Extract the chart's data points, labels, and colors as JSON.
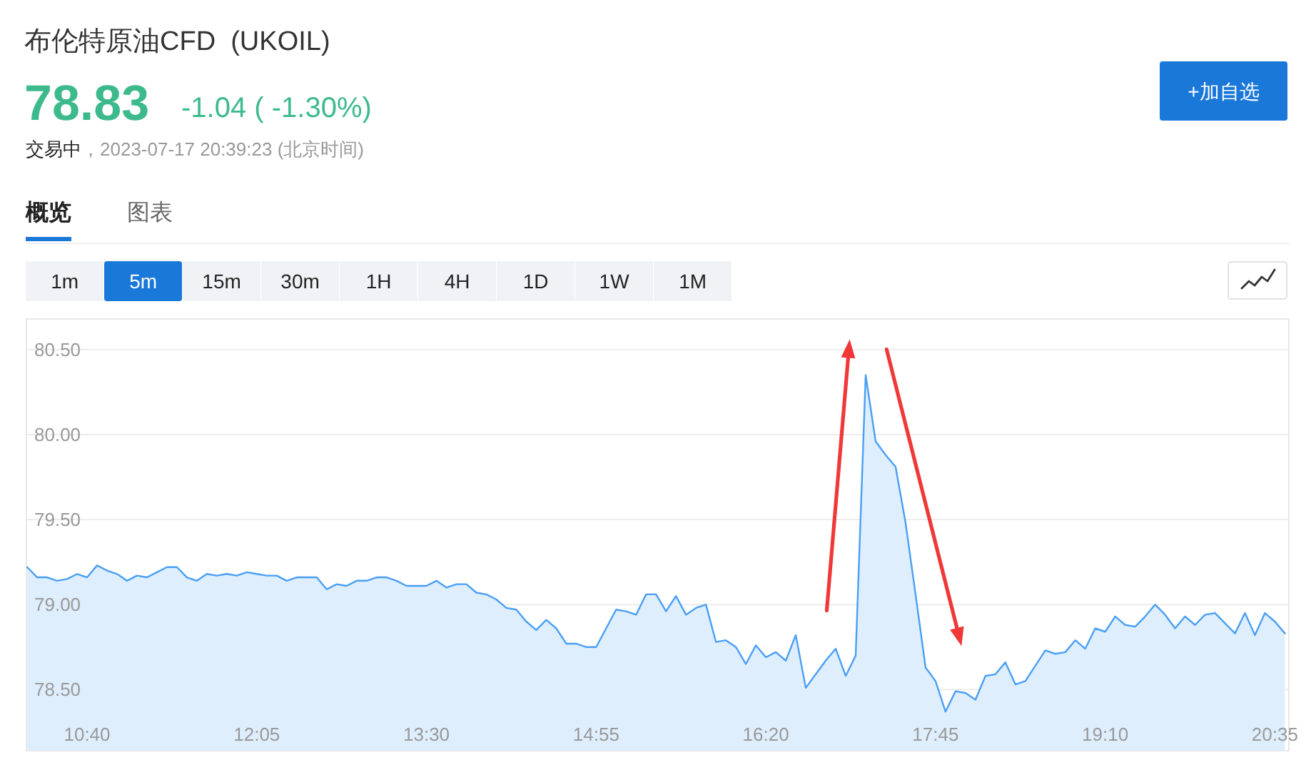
{
  "chart_data": {
    "type": "area",
    "title": "布伦特原油CFD  (UKOIL)",
    "annotations": [
      "78.83",
      "-1.04 ( -1.30%)",
      "交易中",
      "，2023-07-17 20:39:23 (北京时间)",
      "+加自选",
      "概览",
      "图表",
      "1m",
      "5m",
      "15m",
      "30m",
      "1H",
      "4H",
      "1D",
      "1W",
      "1M"
    ],
    "x": [
      10.1667,
      10.25,
      10.3333,
      10.4167,
      10.5,
      10.5833,
      10.6667,
      10.75,
      10.8333,
      10.9167,
      11,
      11.0833,
      11.1667,
      11.25,
      11.3333,
      11.4167,
      11.5,
      11.5833,
      11.6667,
      11.75,
      11.8333,
      11.9167,
      12,
      12.0833,
      12.1667,
      12.25,
      12.3333,
      12.4167,
      12.5,
      12.5833,
      12.6667,
      12.75,
      12.8333,
      12.9167,
      13,
      13.0833,
      13.1667,
      13.25,
      13.3333,
      13.4167,
      13.5,
      13.5833,
      13.6667,
      13.75,
      13.8333,
      13.9167,
      14,
      14.0833,
      14.1667,
      14.25,
      14.3333,
      14.4167,
      14.5,
      14.5833,
      14.6667,
      14.75,
      14.8333,
      14.9167,
      15,
      15.0833,
      15.1667,
      15.25,
      15.3333,
      15.4167,
      15.5,
      15.5833,
      15.6667,
      15.75,
      15.8333,
      15.9167,
      16,
      16.0833,
      16.1667,
      16.25,
      16.3333,
      16.4167,
      16.5,
      16.5833,
      16.6667,
      16.75,
      16.8333,
      16.9167,
      17,
      17.0833,
      17.1667,
      17.25,
      17.3333,
      17.4167,
      17.5,
      17.5833,
      17.6667,
      17.75,
      17.8333,
      17.9167,
      18,
      18.0833,
      18.1667,
      18.25,
      18.3333,
      18.4167,
      18.5,
      18.5833,
      18.6667,
      18.75,
      18.8333,
      18.9167,
      19,
      19.0833,
      19.1667,
      19.25,
      19.3333,
      19.4167,
      19.5,
      19.5833,
      19.6667,
      19.75,
      19.8333,
      19.9167,
      20,
      20.0833,
      20.1667,
      20.25,
      20.3333,
      20.4167,
      20.5,
      20.5833,
      20.6667
    ],
    "values": [
      79.22,
      79.16,
      79.16,
      79.14,
      79.15,
      79.18,
      79.16,
      79.23,
      79.2,
      79.18,
      79.14,
      79.17,
      79.16,
      79.19,
      79.22,
      79.22,
      79.16,
      79.14,
      79.18,
      79.17,
      79.18,
      79.17,
      79.19,
      79.18,
      79.17,
      79.17,
      79.14,
      79.16,
      79.16,
      79.16,
      79.09,
      79.12,
      79.11,
      79.14,
      79.14,
      79.16,
      79.16,
      79.14,
      79.11,
      79.11,
      79.11,
      79.14,
      79.1,
      79.12,
      79.12,
      79.07,
      79.06,
      79.03,
      78.98,
      78.97,
      78.9,
      78.85,
      78.91,
      78.86,
      78.77,
      78.77,
      78.75,
      78.75,
      78.86,
      78.97,
      78.96,
      78.94,
      79.06,
      79.06,
      78.96,
      79.05,
      78.94,
      78.98,
      79.0,
      78.78,
      78.79,
      78.75,
      78.65,
      78.76,
      78.69,
      78.72,
      78.67,
      78.82,
      78.51,
      78.59,
      78.67,
      78.74,
      78.58,
      78.7,
      80.35,
      79.96,
      79.88,
      79.81,
      79.48,
      79.06,
      78.63,
      78.55,
      78.37,
      78.49,
      78.48,
      78.44,
      78.58,
      78.59,
      78.66,
      78.53,
      78.55,
      78.64,
      78.73,
      78.71,
      78.72,
      78.79,
      78.74,
      78.86,
      78.84,
      78.93,
      78.88,
      78.87,
      78.93,
      79.0,
      78.94,
      78.86,
      78.93,
      78.88,
      78.94,
      78.95,
      78.89,
      78.83,
      78.95,
      78.82,
      78.95,
      78.9,
      78.83
    ],
    "color": "#4a9ff5",
    "xlim": [
      10.16,
      20.7
    ],
    "ylim": [
      78.14,
      80.68
    ],
    "xticks": [
      {
        "value": 10.6667,
        "label": "10:40"
      },
      {
        "value": 12.0833,
        "label": "12:05"
      },
      {
        "value": 13.5,
        "label": "13:30"
      },
      {
        "value": 14.9167,
        "label": "14:55"
      },
      {
        "value": 16.3333,
        "label": "16:20"
      },
      {
        "value": 17.75,
        "label": "17:45"
      },
      {
        "value": 19.1667,
        "label": "19:10"
      },
      {
        "value": 20.5833,
        "label": "20:35"
      }
    ],
    "yticks": [
      {
        "value": 78.5,
        "label": "78.50"
      },
      {
        "value": 79,
        "label": "79.00"
      },
      {
        "value": 79.5,
        "label": "79.50"
      },
      {
        "value": 80,
        "label": "80.00"
      },
      {
        "value": 80.5,
        "label": "80.50"
      }
    ],
    "grid": "y"
  }
}
